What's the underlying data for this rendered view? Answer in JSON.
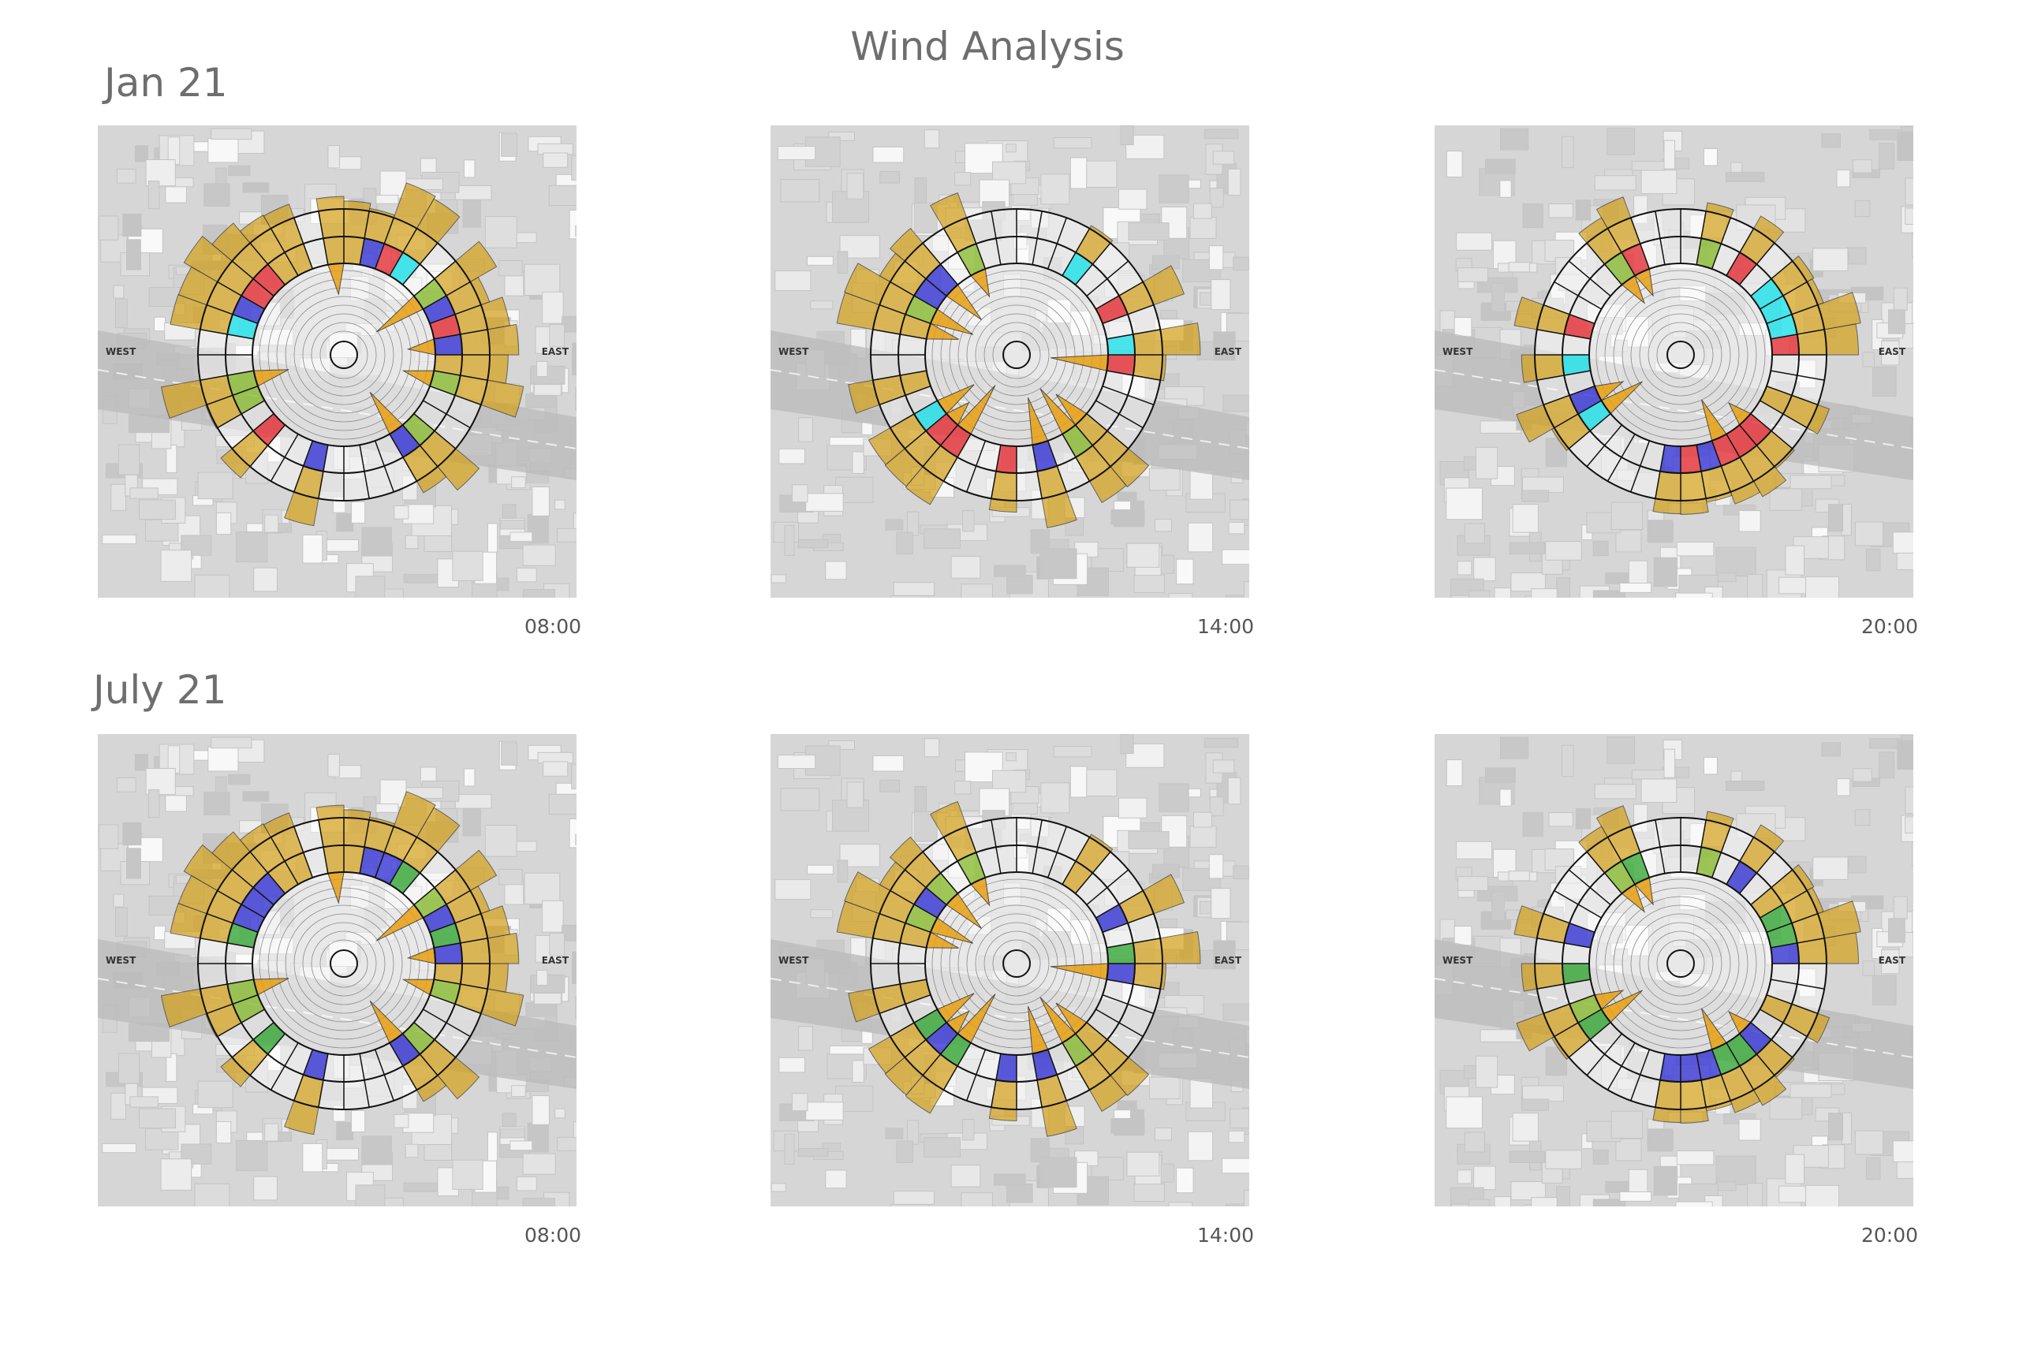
{
  "title": "Wind Analysis",
  "compass": {
    "west": "WEST",
    "east": "EAST"
  },
  "rows": [
    {
      "label": "Jan 21",
      "panels": [
        {
          "time": "08:00"
        },
        {
          "time": "14:00"
        },
        {
          "time": "20:00"
        }
      ]
    },
    {
      "label": "July 21",
      "panels": [
        {
          "time": "08:00"
        },
        {
          "time": "14:00"
        },
        {
          "time": "20:00"
        }
      ]
    }
  ]
}
